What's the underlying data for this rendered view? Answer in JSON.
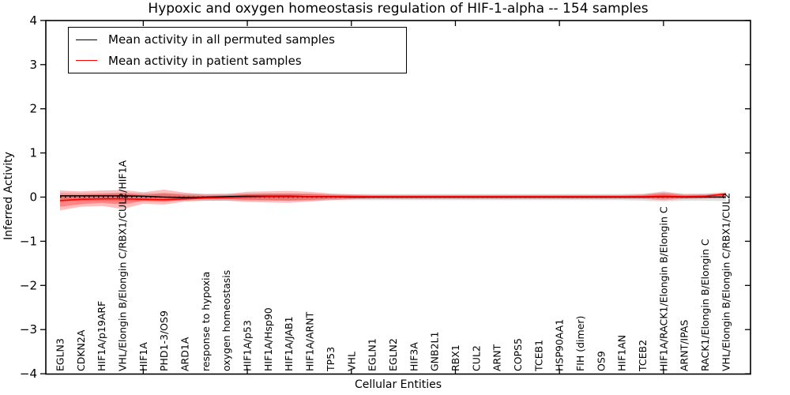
{
  "title": "Hypoxic and oxygen homeostasis regulation of HIF-1-alpha -- 154 samples",
  "axes": {
    "ylabel": "Inferred Activity",
    "xlabel": "Cellular Entities"
  },
  "legend": {
    "items": [
      {
        "label": "Mean activity in all permuted samples",
        "color": "#000000"
      },
      {
        "label": "Mean activity in patient samples",
        "color": "#ff0000"
      }
    ]
  },
  "chart_data": {
    "type": "line",
    "title": "Hypoxic and oxygen homeostasis regulation of HIF-1-alpha -- 154 samples",
    "xlabel": "Cellular Entities",
    "ylabel": "Inferred Activity",
    "ylim": [
      -4,
      4
    ],
    "yticks": [
      4,
      3,
      2,
      1,
      0,
      -1,
      -2,
      -3,
      -4
    ],
    "ytick_labels": [
      "4",
      "3",
      "2",
      "1",
      "0",
      "−1",
      "−2",
      "−3",
      "−4"
    ],
    "grid": false,
    "legend_position": "upper left",
    "xtick_mark_indices": [
      4,
      9,
      14,
      19,
      24,
      29
    ],
    "categories": [
      "EGLN3",
      "CDKN2A",
      "HIF1A/p19ARF",
      "VHL/Elongin B/Elongin C/RBX1/CUL2/HIF1A",
      "HIF1A",
      "PHD1-3/OS9",
      "ARD1A",
      "response to hypoxia",
      "oxygen homeostasis",
      "HIF1A/p53",
      "HIF1A/Hsp90",
      "HIF1A/JAB1",
      "HIF1A/ARNT",
      "TP53",
      "VHL",
      "EGLN1",
      "EGLN2",
      "HIF3A",
      "GNB2L1",
      "RBX1",
      "CUL2",
      "ARNT",
      "COPS5",
      "TCEB1",
      "HSP90AA1",
      "FIH (dimer)",
      "OS9",
      "HIF1AN",
      "TCEB2",
      "HIF1A/RACK1/Elongin B/Elongin C",
      "ARNT/IPAS",
      "RACK1/Elongin B/Elongin C",
      "VHL/Elongin B/Elongin C/RBX1/CUL2"
    ],
    "series": [
      {
        "name": "Mean activity in all permuted samples",
        "color": "#000000",
        "style": "solid",
        "values": [
          0.03,
          0.03,
          0.03,
          0.03,
          0.02,
          0.0,
          -0.01,
          0.0,
          0.01,
          0.02,
          0.02,
          0.02,
          0.01,
          0.01,
          0.0,
          0.0,
          0.0,
          0.0,
          0.0,
          0.0,
          0.0,
          0.0,
          0.0,
          0.0,
          0.0,
          0.0,
          0.0,
          0.0,
          0.0,
          0.01,
          0.0,
          0.0,
          0.0
        ]
      },
      {
        "name": "Mean activity in patient samples",
        "color": "#ff0000",
        "style": "solid",
        "values": [
          -0.08,
          -0.05,
          -0.04,
          -0.04,
          -0.05,
          -0.06,
          -0.04,
          -0.02,
          -0.01,
          0.0,
          0.01,
          0.01,
          0.01,
          0.01,
          0.01,
          0.01,
          0.01,
          0.01,
          0.01,
          0.01,
          0.01,
          0.01,
          0.01,
          0.01,
          0.01,
          0.01,
          0.01,
          0.01,
          0.01,
          0.02,
          0.01,
          0.02,
          0.07
        ]
      },
      {
        "name": "zero reference",
        "color": "#000000",
        "style": "dotted",
        "y": 0
      }
    ],
    "bands": [
      {
        "name": "permuted samples range",
        "color": "#9a9a9a",
        "opacity": 0.32,
        "upper": [
          0.1,
          0.09,
          0.09,
          0.1,
          0.09,
          0.09,
          0.08,
          0.08,
          0.08,
          0.08,
          0.08,
          0.08,
          0.08,
          0.07,
          0.07,
          0.07,
          0.07,
          0.07,
          0.07,
          0.07,
          0.07,
          0.07,
          0.07,
          0.07,
          0.07,
          0.07,
          0.07,
          0.07,
          0.08,
          0.1,
          0.08,
          0.08,
          0.09
        ],
        "lower": [
          -0.1,
          -0.09,
          -0.09,
          -0.1,
          -0.09,
          -0.09,
          -0.08,
          -0.08,
          -0.08,
          -0.08,
          -0.08,
          -0.08,
          -0.08,
          -0.07,
          -0.07,
          -0.07,
          -0.07,
          -0.07,
          -0.07,
          -0.07,
          -0.07,
          -0.07,
          -0.07,
          -0.07,
          -0.07,
          -0.07,
          -0.07,
          -0.07,
          -0.08,
          -0.1,
          -0.08,
          -0.08,
          -0.09
        ]
      },
      {
        "name": "patient samples range outer",
        "color": "#ff0000",
        "opacity": 0.26,
        "upper": [
          0.15,
          0.13,
          0.15,
          0.16,
          0.11,
          0.17,
          0.1,
          0.06,
          0.07,
          0.12,
          0.13,
          0.14,
          0.12,
          0.08,
          0.06,
          0.05,
          0.05,
          0.05,
          0.05,
          0.05,
          0.05,
          0.05,
          0.05,
          0.05,
          0.05,
          0.05,
          0.05,
          0.05,
          0.06,
          0.13,
          0.06,
          0.07,
          0.11
        ],
        "lower": [
          -0.3,
          -0.22,
          -0.2,
          -0.27,
          -0.15,
          -0.17,
          -0.1,
          -0.08,
          -0.08,
          -0.11,
          -0.12,
          -0.13,
          -0.1,
          -0.07,
          -0.05,
          -0.04,
          -0.04,
          -0.04,
          -0.04,
          -0.04,
          -0.04,
          -0.04,
          -0.04,
          -0.04,
          -0.04,
          -0.04,
          -0.04,
          -0.04,
          -0.04,
          -0.07,
          -0.04,
          -0.03,
          -0.01
        ]
      },
      {
        "name": "patient samples range inner",
        "color": "#ff0000",
        "opacity": 0.3,
        "upper": [
          0.05,
          0.05,
          0.07,
          0.09,
          0.05,
          0.09,
          0.05,
          0.03,
          0.04,
          0.07,
          0.08,
          0.08,
          0.07,
          0.05,
          0.04,
          0.03,
          0.03,
          0.03,
          0.03,
          0.03,
          0.03,
          0.03,
          0.03,
          0.03,
          0.03,
          0.03,
          0.03,
          0.03,
          0.04,
          0.08,
          0.04,
          0.04,
          0.09
        ],
        "lower": [
          -0.22,
          -0.16,
          -0.13,
          -0.17,
          -0.09,
          -0.11,
          -0.06,
          -0.04,
          -0.04,
          -0.06,
          -0.07,
          -0.08,
          -0.06,
          -0.04,
          -0.03,
          -0.02,
          -0.02,
          -0.02,
          -0.02,
          -0.02,
          -0.02,
          -0.02,
          -0.02,
          -0.02,
          -0.02,
          -0.02,
          -0.02,
          -0.02,
          -0.02,
          -0.04,
          -0.02,
          -0.01,
          0.03
        ]
      }
    ]
  }
}
